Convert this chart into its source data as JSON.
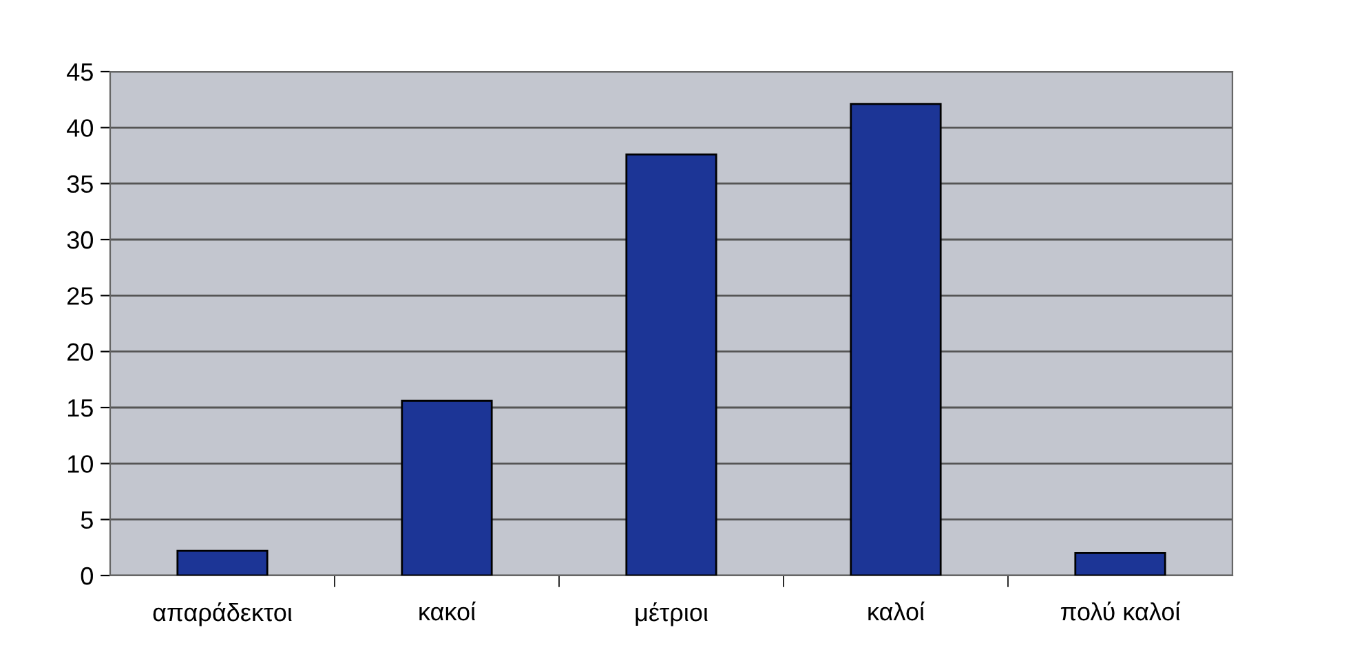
{
  "chart_data": {
    "type": "bar",
    "categories": [
      "απαράδεκτοι",
      "κακοί",
      "μέτριοι",
      "καλοί",
      "πολύ καλοί"
    ],
    "values": [
      2.2,
      15.6,
      37.6,
      42.1,
      2.0
    ],
    "color": "#1c3596",
    "ylim": [
      0,
      45
    ],
    "yticks": [
      0,
      5,
      10,
      15,
      20,
      25,
      30,
      35,
      40,
      45
    ],
    "grid": "y"
  }
}
